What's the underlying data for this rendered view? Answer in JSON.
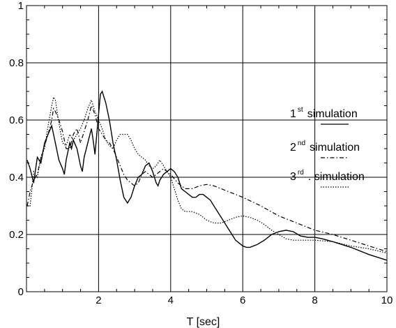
{
  "chart_data": {
    "type": "line",
    "title": "",
    "xlabel": "T  [sec]",
    "ylabel": "",
    "xlim": [
      0,
      10
    ],
    "ylim": [
      0,
      1
    ],
    "xticks": [
      2,
      4,
      6,
      8,
      10
    ],
    "yticks": [
      0,
      0.2,
      0.4,
      0.6,
      0.8,
      1
    ],
    "xtick_labels": [
      "2",
      "4",
      "6",
      "8",
      "10"
    ],
    "ytick_labels": [
      "0",
      "0.2",
      "0.4",
      "0.6",
      "0.8",
      "1"
    ],
    "grid": true,
    "legend_position": "right",
    "series": [
      {
        "name": "1st simulation",
        "label_main": "1",
        "label_sup": "st",
        "label_rest": "simulation",
        "style": "solid",
        "points": [
          [
            0.02,
            0.46
          ],
          [
            0.1,
            0.43
          ],
          [
            0.2,
            0.38
          ],
          [
            0.3,
            0.47
          ],
          [
            0.4,
            0.45
          ],
          [
            0.5,
            0.52
          ],
          [
            0.6,
            0.55
          ],
          [
            0.7,
            0.58
          ],
          [
            0.8,
            0.52
          ],
          [
            0.9,
            0.46
          ],
          [
            1.0,
            0.43
          ],
          [
            1.05,
            0.41
          ],
          [
            1.1,
            0.46
          ],
          [
            1.2,
            0.52
          ],
          [
            1.25,
            0.5
          ],
          [
            1.3,
            0.53
          ],
          [
            1.4,
            0.5
          ],
          [
            1.5,
            0.44
          ],
          [
            1.55,
            0.42
          ],
          [
            1.6,
            0.47
          ],
          [
            1.7,
            0.52
          ],
          [
            1.8,
            0.57
          ],
          [
            1.85,
            0.53
          ],
          [
            1.9,
            0.48
          ],
          [
            2.0,
            0.62
          ],
          [
            2.05,
            0.69
          ],
          [
            2.1,
            0.7
          ],
          [
            2.2,
            0.66
          ],
          [
            2.3,
            0.6
          ],
          [
            2.4,
            0.52
          ],
          [
            2.5,
            0.46
          ],
          [
            2.6,
            0.39
          ],
          [
            2.7,
            0.33
          ],
          [
            2.8,
            0.31
          ],
          [
            2.9,
            0.33
          ],
          [
            3.0,
            0.37
          ],
          [
            3.1,
            0.4
          ],
          [
            3.2,
            0.41
          ],
          [
            3.3,
            0.44
          ],
          [
            3.4,
            0.45
          ],
          [
            3.5,
            0.42
          ],
          [
            3.6,
            0.38
          ],
          [
            3.65,
            0.37
          ],
          [
            3.7,
            0.39
          ],
          [
            3.8,
            0.41
          ],
          [
            3.9,
            0.42
          ],
          [
            4.0,
            0.43
          ],
          [
            4.1,
            0.42
          ],
          [
            4.2,
            0.4
          ],
          [
            4.3,
            0.36
          ],
          [
            4.4,
            0.35
          ],
          [
            4.5,
            0.34
          ],
          [
            4.6,
            0.33
          ],
          [
            4.7,
            0.33
          ],
          [
            4.8,
            0.34
          ],
          [
            4.9,
            0.34
          ],
          [
            5.0,
            0.33
          ],
          [
            5.1,
            0.32
          ],
          [
            5.2,
            0.3
          ],
          [
            5.3,
            0.28
          ],
          [
            5.4,
            0.26
          ],
          [
            5.5,
            0.24
          ],
          [
            5.6,
            0.22
          ],
          [
            5.7,
            0.2
          ],
          [
            5.8,
            0.18
          ],
          [
            5.9,
            0.17
          ],
          [
            6.0,
            0.16
          ],
          [
            6.1,
            0.155
          ],
          [
            6.2,
            0.155
          ],
          [
            6.4,
            0.165
          ],
          [
            6.6,
            0.18
          ],
          [
            6.8,
            0.2
          ],
          [
            7.0,
            0.21
          ],
          [
            7.2,
            0.215
          ],
          [
            7.4,
            0.21
          ],
          [
            7.6,
            0.195
          ],
          [
            7.8,
            0.19
          ],
          [
            8.0,
            0.19
          ],
          [
            8.2,
            0.185
          ],
          [
            8.5,
            0.175
          ],
          [
            9.0,
            0.155
          ],
          [
            9.5,
            0.13
          ],
          [
            10.0,
            0.11
          ]
        ]
      },
      {
        "name": "2nd simulation",
        "label_main": "2",
        "label_sup": "nd",
        "label_rest": "simulation",
        "style": "dashdot",
        "points": [
          [
            0.02,
            0.3
          ],
          [
            0.1,
            0.35
          ],
          [
            0.2,
            0.39
          ],
          [
            0.3,
            0.41
          ],
          [
            0.4,
            0.47
          ],
          [
            0.5,
            0.51
          ],
          [
            0.6,
            0.55
          ],
          [
            0.7,
            0.6
          ],
          [
            0.75,
            0.64
          ],
          [
            0.8,
            0.63
          ],
          [
            0.9,
            0.6
          ],
          [
            1.0,
            0.56
          ],
          [
            1.1,
            0.5
          ],
          [
            1.2,
            0.5
          ],
          [
            1.3,
            0.55
          ],
          [
            1.4,
            0.57
          ],
          [
            1.5,
            0.52
          ],
          [
            1.6,
            0.56
          ],
          [
            1.7,
            0.6
          ],
          [
            1.8,
            0.65
          ],
          [
            1.9,
            0.62
          ],
          [
            2.0,
            0.57
          ],
          [
            2.1,
            0.55
          ],
          [
            2.2,
            0.53
          ],
          [
            2.3,
            0.52
          ],
          [
            2.4,
            0.5
          ],
          [
            2.5,
            0.47
          ],
          [
            2.6,
            0.44
          ],
          [
            2.7,
            0.41
          ],
          [
            2.8,
            0.39
          ],
          [
            2.9,
            0.38
          ],
          [
            3.0,
            0.37
          ],
          [
            3.1,
            0.38
          ],
          [
            3.2,
            0.41
          ],
          [
            3.3,
            0.42
          ],
          [
            3.4,
            0.41
          ],
          [
            3.5,
            0.4
          ],
          [
            3.6,
            0.41
          ],
          [
            3.7,
            0.42
          ],
          [
            3.8,
            0.43
          ],
          [
            3.9,
            0.42
          ],
          [
            4.0,
            0.41
          ],
          [
            4.2,
            0.38
          ],
          [
            4.4,
            0.36
          ],
          [
            4.6,
            0.36
          ],
          [
            4.8,
            0.37
          ],
          [
            5.0,
            0.375
          ],
          [
            5.2,
            0.37
          ],
          [
            5.5,
            0.355
          ],
          [
            5.8,
            0.34
          ],
          [
            6.0,
            0.33
          ],
          [
            6.5,
            0.3
          ],
          [
            7.0,
            0.265
          ],
          [
            7.5,
            0.24
          ],
          [
            8.0,
            0.215
          ],
          [
            8.5,
            0.2
          ],
          [
            9.0,
            0.18
          ],
          [
            9.5,
            0.16
          ],
          [
            10.0,
            0.14
          ]
        ]
      },
      {
        "name": "3rd simulation",
        "label_main": "3",
        "label_sup": "rd",
        "label_rest": ". simulation",
        "style": "dotted",
        "points": [
          [
            0.02,
            0.3
          ],
          [
            0.1,
            0.3
          ],
          [
            0.2,
            0.42
          ],
          [
            0.3,
            0.4
          ],
          [
            0.4,
            0.47
          ],
          [
            0.5,
            0.5
          ],
          [
            0.6,
            0.58
          ],
          [
            0.7,
            0.65
          ],
          [
            0.75,
            0.68
          ],
          [
            0.8,
            0.67
          ],
          [
            0.9,
            0.59
          ],
          [
            1.0,
            0.52
          ],
          [
            1.1,
            0.51
          ],
          [
            1.2,
            0.55
          ],
          [
            1.3,
            0.53
          ],
          [
            1.4,
            0.55
          ],
          [
            1.5,
            0.57
          ],
          [
            1.6,
            0.6
          ],
          [
            1.7,
            0.64
          ],
          [
            1.8,
            0.67
          ],
          [
            1.9,
            0.63
          ],
          [
            2.0,
            0.6
          ],
          [
            2.1,
            0.57
          ],
          [
            2.2,
            0.53
          ],
          [
            2.3,
            0.51
          ],
          [
            2.4,
            0.5
          ],
          [
            2.5,
            0.53
          ],
          [
            2.6,
            0.55
          ],
          [
            2.7,
            0.55
          ],
          [
            2.8,
            0.55
          ],
          [
            2.9,
            0.53
          ],
          [
            3.0,
            0.5
          ],
          [
            3.1,
            0.48
          ],
          [
            3.2,
            0.47
          ],
          [
            3.3,
            0.46
          ],
          [
            3.4,
            0.44
          ],
          [
            3.5,
            0.43
          ],
          [
            3.6,
            0.44
          ],
          [
            3.7,
            0.46
          ],
          [
            3.8,
            0.44
          ],
          [
            3.9,
            0.42
          ],
          [
            4.0,
            0.4
          ],
          [
            4.1,
            0.36
          ],
          [
            4.2,
            0.32
          ],
          [
            4.3,
            0.29
          ],
          [
            4.4,
            0.28
          ],
          [
            4.6,
            0.28
          ],
          [
            4.8,
            0.27
          ],
          [
            5.0,
            0.25
          ],
          [
            5.2,
            0.24
          ],
          [
            5.4,
            0.24
          ],
          [
            5.6,
            0.25
          ],
          [
            5.8,
            0.26
          ],
          [
            6.0,
            0.265
          ],
          [
            6.2,
            0.26
          ],
          [
            6.4,
            0.25
          ],
          [
            6.6,
            0.235
          ],
          [
            6.8,
            0.215
          ],
          [
            7.0,
            0.2
          ],
          [
            7.2,
            0.185
          ],
          [
            7.4,
            0.18
          ],
          [
            7.6,
            0.18
          ],
          [
            8.0,
            0.18
          ],
          [
            8.5,
            0.175
          ],
          [
            9.0,
            0.16
          ],
          [
            9.5,
            0.15
          ],
          [
            10.0,
            0.135
          ]
        ]
      }
    ]
  }
}
